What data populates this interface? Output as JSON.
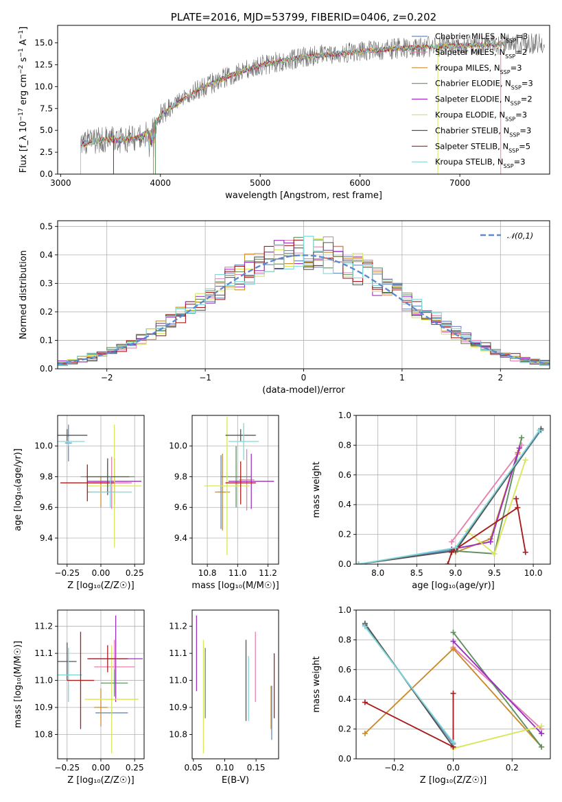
{
  "palette": [
    "#6688c3",
    "#e57fb0",
    "#c98b2b",
    "#5f8f5f",
    "#9b30c0",
    "#d9e65a",
    "#555555",
    "#a81c1c",
    "#7fd6d6"
  ],
  "chart_data": [
    {
      "id": "spectrum",
      "type": "line",
      "title": "PLATE=2016, MJD=53799, FIBERID=0406, z=0.202",
      "xlabel": "wavelength [Angstrom, rest frame]",
      "ylabel": "Flux [f_λ 10^-17 erg cm^-2 s^-1 A^-1]",
      "xlim": [
        2970,
        7900
      ],
      "ylim": [
        0,
        17
      ],
      "xticks": [
        3000,
        4000,
        5000,
        6000,
        7000
      ],
      "yticks": [
        0.0,
        2.5,
        5.0,
        7.5,
        10.0,
        12.5,
        15.0
      ],
      "grid": false,
      "legend_position": "top-right",
      "legend": [
        "Chabrier MILES, N_SSP=3",
        "Salpeter MILES, N_SSP=2",
        "Kroupa MILES, N_SSP=3",
        "Chabrier ELODIE, N_SSP=3",
        "Salpeter ELODIE, N_SSP=2",
        "Kroupa ELODIE, N_SSP=3",
        "Chabrier STELIB, N_SSP=3",
        "Salpeter STELIB, N_SSP=5",
        "Kroupa STELIB, N_SSP=3"
      ],
      "continuum": [
        [
          3200,
          3.4
        ],
        [
          3400,
          3.9
        ],
        [
          3600,
          3.9
        ],
        [
          3800,
          4.2
        ],
        [
          3950,
          5.6
        ],
        [
          4000,
          6.8
        ],
        [
          4200,
          8.3
        ],
        [
          4400,
          9.8
        ],
        [
          4600,
          10.8
        ],
        [
          4800,
          11.7
        ],
        [
          5000,
          12.4
        ],
        [
          5200,
          12.9
        ],
        [
          5500,
          13.5
        ],
        [
          5800,
          13.8
        ],
        [
          6000,
          14.0
        ],
        [
          6300,
          14.3
        ],
        [
          6600,
          14.5
        ],
        [
          7000,
          14.7
        ],
        [
          7400,
          14.8
        ],
        [
          7900,
          15.0
        ]
      ]
    },
    {
      "id": "residuals",
      "type": "step",
      "xlabel": "(data-model)/error",
      "ylabel": "Normed distribution",
      "xlim": [
        -2.5,
        2.5
      ],
      "ylim": [
        0,
        0.52
      ],
      "xticks": [
        -2,
        -1,
        0,
        1,
        2
      ],
      "yticks": [
        0.0,
        0.1,
        0.2,
        0.3,
        0.4,
        0.5
      ],
      "grid": true,
      "legend_position": "top-right",
      "legend": [
        "𝒩(0,1)"
      ],
      "bin_width": 0.1,
      "series_count": 9
    },
    {
      "id": "age-vs-Z",
      "type": "errorbar",
      "xlabel": "Z [log10(Z/Z☉)]",
      "ylabel": "age  [log10(age/yr)]",
      "xlim": [
        -0.32,
        0.32
      ],
      "ylim": [
        9.23,
        10.2
      ],
      "xticks": [
        -0.25,
        0.0,
        0.25
      ],
      "yticks": [
        9.4,
        9.6,
        9.8,
        10.0
      ],
      "grid": true,
      "points": [
        {
          "x": -0.24,
          "xerr": 0.025,
          "y": 10.02,
          "yerr": 0.12,
          "c": 0
        },
        {
          "x": -0.25,
          "xerr": 0.15,
          "y": 10.07,
          "yerr": 0.04,
          "c": 6
        },
        {
          "x": -0.24,
          "xerr": 0.12,
          "y": 10.03,
          "yerr": 0.03,
          "c": 8
        },
        {
          "x": 0.05,
          "xerr": 0.15,
          "y": 9.76,
          "yerr": 0.01,
          "c": 0
        },
        {
          "x": 0.08,
          "xerr": 0.15,
          "y": 9.76,
          "yerr": 0.17,
          "c": 1
        },
        {
          "x": 0.0,
          "xerr": 0.1,
          "y": 9.7,
          "yerr": 0.1,
          "c": 2
        },
        {
          "x": 0.05,
          "xerr": 0.2,
          "y": 9.8,
          "yerr": 0.1,
          "c": 3
        },
        {
          "x": 0.1,
          "xerr": 0.2,
          "y": 9.77,
          "yerr": 0.15,
          "c": 4
        },
        {
          "x": 0.1,
          "xerr": 0.2,
          "y": 9.74,
          "yerr": 0.4,
          "c": 5
        },
        {
          "x": 0.05,
          "xerr": 0.16,
          "y": 9.8,
          "yerr": 0.12,
          "c": 6
        },
        {
          "x": -0.1,
          "xerr": 0.2,
          "y": 9.76,
          "yerr": 0.12,
          "c": 7
        },
        {
          "x": 0.07,
          "xerr": 0.16,
          "y": 9.7,
          "yerr": 0.1,
          "c": 8
        }
      ]
    },
    {
      "id": "age-vs-mass",
      "type": "errorbar",
      "xlabel": "mass [log10(M/M☉)]",
      "ylabel": "",
      "xlim": [
        10.7,
        11.27
      ],
      "ylim": [
        9.23,
        10.2
      ],
      "xticks": [
        10.8,
        11.0,
        11.2
      ],
      "yticks": [
        9.4,
        9.6,
        9.8,
        10.0
      ],
      "grid": true,
      "points": [
        {
          "x": 10.89,
          "xerr": 0.02,
          "y": 9.7,
          "yerr": 0.24,
          "c": 0
        },
        {
          "x": 11.06,
          "xerr": 0.05,
          "y": 9.78,
          "yerr": 0.2,
          "c": 1
        },
        {
          "x": 10.9,
          "xerr": 0.05,
          "y": 9.7,
          "yerr": 0.25,
          "c": 2
        },
        {
          "x": 10.99,
          "xerr": 0.1,
          "y": 9.8,
          "yerr": 0.2,
          "c": 3
        },
        {
          "x": 11.09,
          "xerr": 0.15,
          "y": 9.77,
          "yerr": 0.18,
          "c": 4
        },
        {
          "x": 10.93,
          "xerr": 0.15,
          "y": 9.74,
          "yerr": 0.45,
          "c": 5
        },
        {
          "x": 11.02,
          "xerr": 0.1,
          "y": 10.07,
          "yerr": 0.04,
          "c": 6
        },
        {
          "x": 11.02,
          "xerr": 0.1,
          "y": 9.76,
          "yerr": 0.14,
          "c": 7
        },
        {
          "x": 11.04,
          "xerr": 0.1,
          "y": 10.03,
          "yerr": 0.12,
          "c": 8
        }
      ]
    },
    {
      "id": "weight-vs-age",
      "type": "line",
      "xlabel": "age  [log10(age/yr)]",
      "ylabel": "mass weight",
      "xlim": [
        7.72,
        10.22
      ],
      "ylim": [
        0.0,
        1.0
      ],
      "xticks": [
        8.0,
        8.5,
        9.0,
        9.5,
        10.0
      ],
      "yticks": [
        0.0,
        0.2,
        0.4,
        0.6,
        0.8,
        1.0
      ],
      "grid": true,
      "series": [
        {
          "c": 0,
          "points": [
            [
              7.75,
              0.0
            ],
            [
              9.0,
              0.1
            ],
            [
              10.1,
              0.9
            ]
          ]
        },
        {
          "c": 1,
          "points": [
            [
              8.95,
              0.15
            ],
            [
              9.8,
              0.74
            ],
            [
              9.85,
              0.8
            ]
          ]
        },
        {
          "c": 2,
          "points": [
            [
              9.0,
              0.08
            ],
            [
              9.45,
              0.17
            ],
            [
              9.8,
              0.75
            ]
          ]
        },
        {
          "c": 3,
          "points": [
            [
              8.95,
              0.09
            ],
            [
              9.5,
              0.07
            ],
            [
              9.85,
              0.85
            ]
          ]
        },
        {
          "c": 4,
          "points": [
            [
              8.95,
              0.1
            ],
            [
              9.45,
              0.15
            ],
            [
              9.82,
              0.78
            ]
          ]
        },
        {
          "c": 5,
          "points": [
            [
              9.15,
              0.22
            ],
            [
              9.5,
              0.07
            ],
            [
              9.9,
              0.7
            ]
          ]
        },
        {
          "c": 6,
          "points": [
            [
              7.75,
              0.0
            ],
            [
              9.0,
              0.09
            ],
            [
              10.1,
              0.91
            ]
          ]
        },
        {
          "c": 7,
          "points": [
            [
              8.9,
              0.0
            ],
            [
              8.95,
              0.08
            ],
            [
              9.0,
              0.1
            ],
            [
              9.8,
              0.38
            ],
            [
              9.78,
              0.44
            ],
            [
              9.9,
              0.08
            ]
          ]
        },
        {
          "c": 8,
          "points": [
            [
              7.75,
              0.0
            ],
            [
              9.0,
              0.11
            ],
            [
              10.08,
              0.9
            ]
          ]
        }
      ]
    },
    {
      "id": "mass-vs-Z",
      "type": "errorbar",
      "xlabel": "Z [log10(Z/Z☉)]",
      "ylabel": "mass [log10(M/M☉)]",
      "xlim": [
        -0.32,
        0.32
      ],
      "ylim": [
        10.71,
        11.26
      ],
      "xticks": [
        -0.25,
        0.0,
        0.25
      ],
      "yticks": [
        10.8,
        10.9,
        11.0,
        11.1,
        11.2
      ],
      "grid": true,
      "points": [
        {
          "x": 0.08,
          "xerr": 0.12,
          "y": 10.88,
          "yerr": 0.01,
          "c": 0
        },
        {
          "x": 0.1,
          "xerr": 0.15,
          "y": 11.05,
          "yerr": 0.1,
          "c": 1
        },
        {
          "x": 0.0,
          "xerr": 0.05,
          "y": 10.9,
          "yerr": 0.07,
          "c": 2
        },
        {
          "x": 0.1,
          "xerr": 0.1,
          "y": 10.99,
          "yerr": 0.05,
          "c": 3
        },
        {
          "x": 0.11,
          "xerr": 0.2,
          "y": 11.08,
          "yerr": 0.16,
          "c": 4
        },
        {
          "x": 0.08,
          "xerr": 0.2,
          "y": 10.93,
          "yerr": 0.2,
          "c": 5
        },
        {
          "x": -0.25,
          "xerr": 0.07,
          "y": 11.07,
          "yerr": 0.07,
          "c": 6
        },
        {
          "x": 0.05,
          "xerr": 0.15,
          "y": 11.08,
          "yerr": 0.05,
          "c": 7
        },
        {
          "x": -0.24,
          "xerr": 0.1,
          "y": 11.02,
          "yerr": 0.1,
          "c": 8
        },
        {
          "x": -0.15,
          "xerr": 0.1,
          "y": 11.0,
          "yerr": 0.18,
          "c": 7
        }
      ]
    },
    {
      "id": "mass-vs-ebv",
      "type": "errorbar",
      "xlabel": "E(B-V)",
      "ylabel": "",
      "xlim": [
        0.048,
        0.186
      ],
      "ylim": [
        10.71,
        11.26
      ],
      "xticks": [
        0.05,
        0.1,
        0.15
      ],
      "yticks": [
        10.8,
        10.9,
        11.0,
        11.1,
        11.2
      ],
      "grid": false,
      "points": [
        {
          "x": 0.175,
          "yerr": 0.1,
          "y": 10.88,
          "c": 0
        },
        {
          "x": 0.149,
          "yerr": 0.13,
          "y": 11.05,
          "c": 1
        },
        {
          "x": 0.174,
          "yerr": 0.08,
          "y": 10.9,
          "c": 2
        },
        {
          "x": 0.069,
          "yerr": 0.13,
          "y": 10.99,
          "c": 3
        },
        {
          "x": 0.055,
          "yerr": 0.14,
          "y": 11.1,
          "c": 4
        },
        {
          "x": 0.066,
          "yerr": 0.21,
          "y": 10.94,
          "c": 5
        },
        {
          "x": 0.134,
          "yerr": 0.15,
          "y": 11.0,
          "c": 6
        },
        {
          "x": 0.179,
          "yerr": 0.12,
          "y": 10.98,
          "c": 7
        },
        {
          "x": 0.138,
          "yerr": 0.12,
          "y": 10.97,
          "c": 8
        }
      ]
    },
    {
      "id": "weight-vs-Z",
      "type": "line",
      "xlabel": "Z [log10(Z/Z☉)]",
      "ylabel": "mass weight",
      "xlim": [
        -0.33,
        0.33
      ],
      "ylim": [
        0.0,
        1.0
      ],
      "xticks": [
        -0.2,
        0.0,
        0.2
      ],
      "yticks": [
        0.0,
        0.2,
        0.4,
        0.6,
        0.8,
        1.0
      ],
      "grid": true,
      "series": [
        {
          "c": 0,
          "points": [
            [
              -0.3,
              0.9
            ],
            [
              0.0,
              0.1
            ]
          ]
        },
        {
          "c": 1,
          "points": [
            [
              0.0,
              0.75
            ],
            [
              0.3,
              0.2
            ]
          ]
        },
        {
          "c": 2,
          "points": [
            [
              -0.3,
              0.17
            ],
            [
              0.0,
              0.74
            ],
            [
              0.3,
              0.08
            ]
          ]
        },
        {
          "c": 3,
          "points": [
            [
              0.0,
              0.85
            ],
            [
              0.3,
              0.08
            ]
          ]
        },
        {
          "c": 4,
          "points": [
            [
              0.0,
              0.79
            ],
            [
              0.3,
              0.17
            ]
          ]
        },
        {
          "c": 5,
          "points": [
            [
              0.0,
              0.07
            ],
            [
              0.3,
              0.22
            ]
          ]
        },
        {
          "c": 6,
          "points": [
            [
              -0.3,
              0.91
            ],
            [
              0.0,
              0.08
            ]
          ]
        },
        {
          "c": 7,
          "points": [
            [
              -0.3,
              0.38
            ],
            [
              0.0,
              0.08
            ],
            [
              0.0,
              0.44
            ]
          ]
        },
        {
          "c": 8,
          "points": [
            [
              -0.3,
              0.89
            ],
            [
              0.0,
              0.11
            ]
          ]
        }
      ]
    }
  ]
}
